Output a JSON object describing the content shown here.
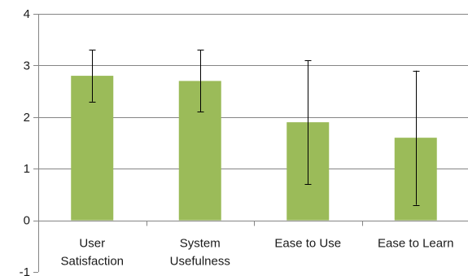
{
  "chart_data": {
    "type": "bar",
    "title": "",
    "xlabel": "",
    "ylabel": "",
    "categories": [
      [
        "User",
        "Satisfaction"
      ],
      [
        "System",
        "Usefulness"
      ],
      [
        "Ease to Use"
      ],
      [
        "Ease to Learn"
      ]
    ],
    "values": [
      2.8,
      2.7,
      1.9,
      1.6
    ],
    "error_low": [
      2.3,
      2.1,
      0.7,
      0.3
    ],
    "error_high": [
      3.3,
      3.3,
      3.1,
      2.9
    ],
    "ylim": [
      -1,
      4
    ],
    "yticks": [
      "-1",
      "0",
      "1",
      "2",
      "3",
      "4"
    ],
    "grid": true,
    "bar_color": "#9bbb59",
    "grid_color": "#858585",
    "axis_color": "#858585",
    "error_color": "#000000"
  }
}
